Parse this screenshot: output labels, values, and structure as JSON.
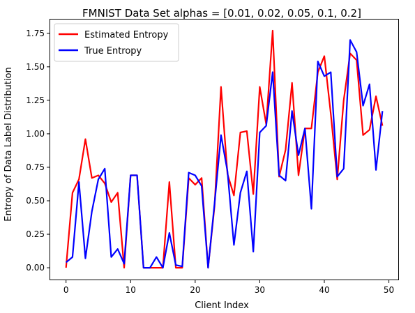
{
  "chart_data": {
    "type": "line",
    "title": "FMNIST Data Set alphas = [0.01, 0.02, 0.05, 0.1, 0.2]",
    "xlabel": "Client Index",
    "ylabel": "Entropy of Data Label Distribution",
    "xlim": [
      -2.45,
      51.45
    ],
    "ylim": [
      -0.088,
      1.853
    ],
    "xticks": [
      0,
      10,
      20,
      30,
      40,
      50
    ],
    "yticks": [
      0.0,
      0.25,
      0.5,
      0.75,
      1.0,
      1.25,
      1.5,
      1.75
    ],
    "xtick_labels": [
      "0",
      "10",
      "20",
      "30",
      "40",
      "50"
    ],
    "ytick_labels": [
      "0.00",
      "0.25",
      "0.50",
      "0.75",
      "1.00",
      "1.25",
      "1.50",
      "1.75"
    ],
    "grid": false,
    "legend_position": "top-left",
    "x": [
      0,
      1,
      2,
      3,
      4,
      5,
      6,
      7,
      8,
      9,
      10,
      11,
      12,
      13,
      14,
      15,
      16,
      17,
      18,
      19,
      20,
      21,
      22,
      23,
      24,
      25,
      26,
      27,
      28,
      29,
      30,
      31,
      32,
      33,
      34,
      35,
      36,
      37,
      38,
      39,
      40,
      41,
      42,
      43,
      44,
      45,
      46,
      47,
      48,
      49
    ],
    "series": [
      {
        "name": "Estimated Entropy",
        "color": "#ff0000",
        "values": [
          0.0,
          0.56,
          0.66,
          0.96,
          0.67,
          0.69,
          0.63,
          0.49,
          0.56,
          0.0,
          0.69,
          0.69,
          0.0,
          0.0,
          0.0,
          0.0,
          0.64,
          0.0,
          0.0,
          0.67,
          0.62,
          0.67,
          0.0,
          0.46,
          1.35,
          0.7,
          0.54,
          1.01,
          1.02,
          0.55,
          1.35,
          1.07,
          1.77,
          0.68,
          0.88,
          1.38,
          0.69,
          1.04,
          1.04,
          1.46,
          1.58,
          1.15,
          0.66,
          1.25,
          1.6,
          1.55,
          0.99,
          1.03,
          1.28,
          1.06
        ]
      },
      {
        "name": "True Entropy",
        "color": "#0000ff",
        "values": [
          0.04,
          0.08,
          0.64,
          0.07,
          0.42,
          0.66,
          0.74,
          0.08,
          0.14,
          0.03,
          0.69,
          0.69,
          0.0,
          0.0,
          0.08,
          0.0,
          0.26,
          0.02,
          0.01,
          0.71,
          0.69,
          0.61,
          0.0,
          0.48,
          0.99,
          0.72,
          0.17,
          0.56,
          0.72,
          0.12,
          1.01,
          1.06,
          1.46,
          0.69,
          0.65,
          1.17,
          0.84,
          1.04,
          0.44,
          1.54,
          1.43,
          1.46,
          0.68,
          0.74,
          1.7,
          1.61,
          1.21,
          1.37,
          0.73,
          1.17
        ]
      }
    ]
  }
}
